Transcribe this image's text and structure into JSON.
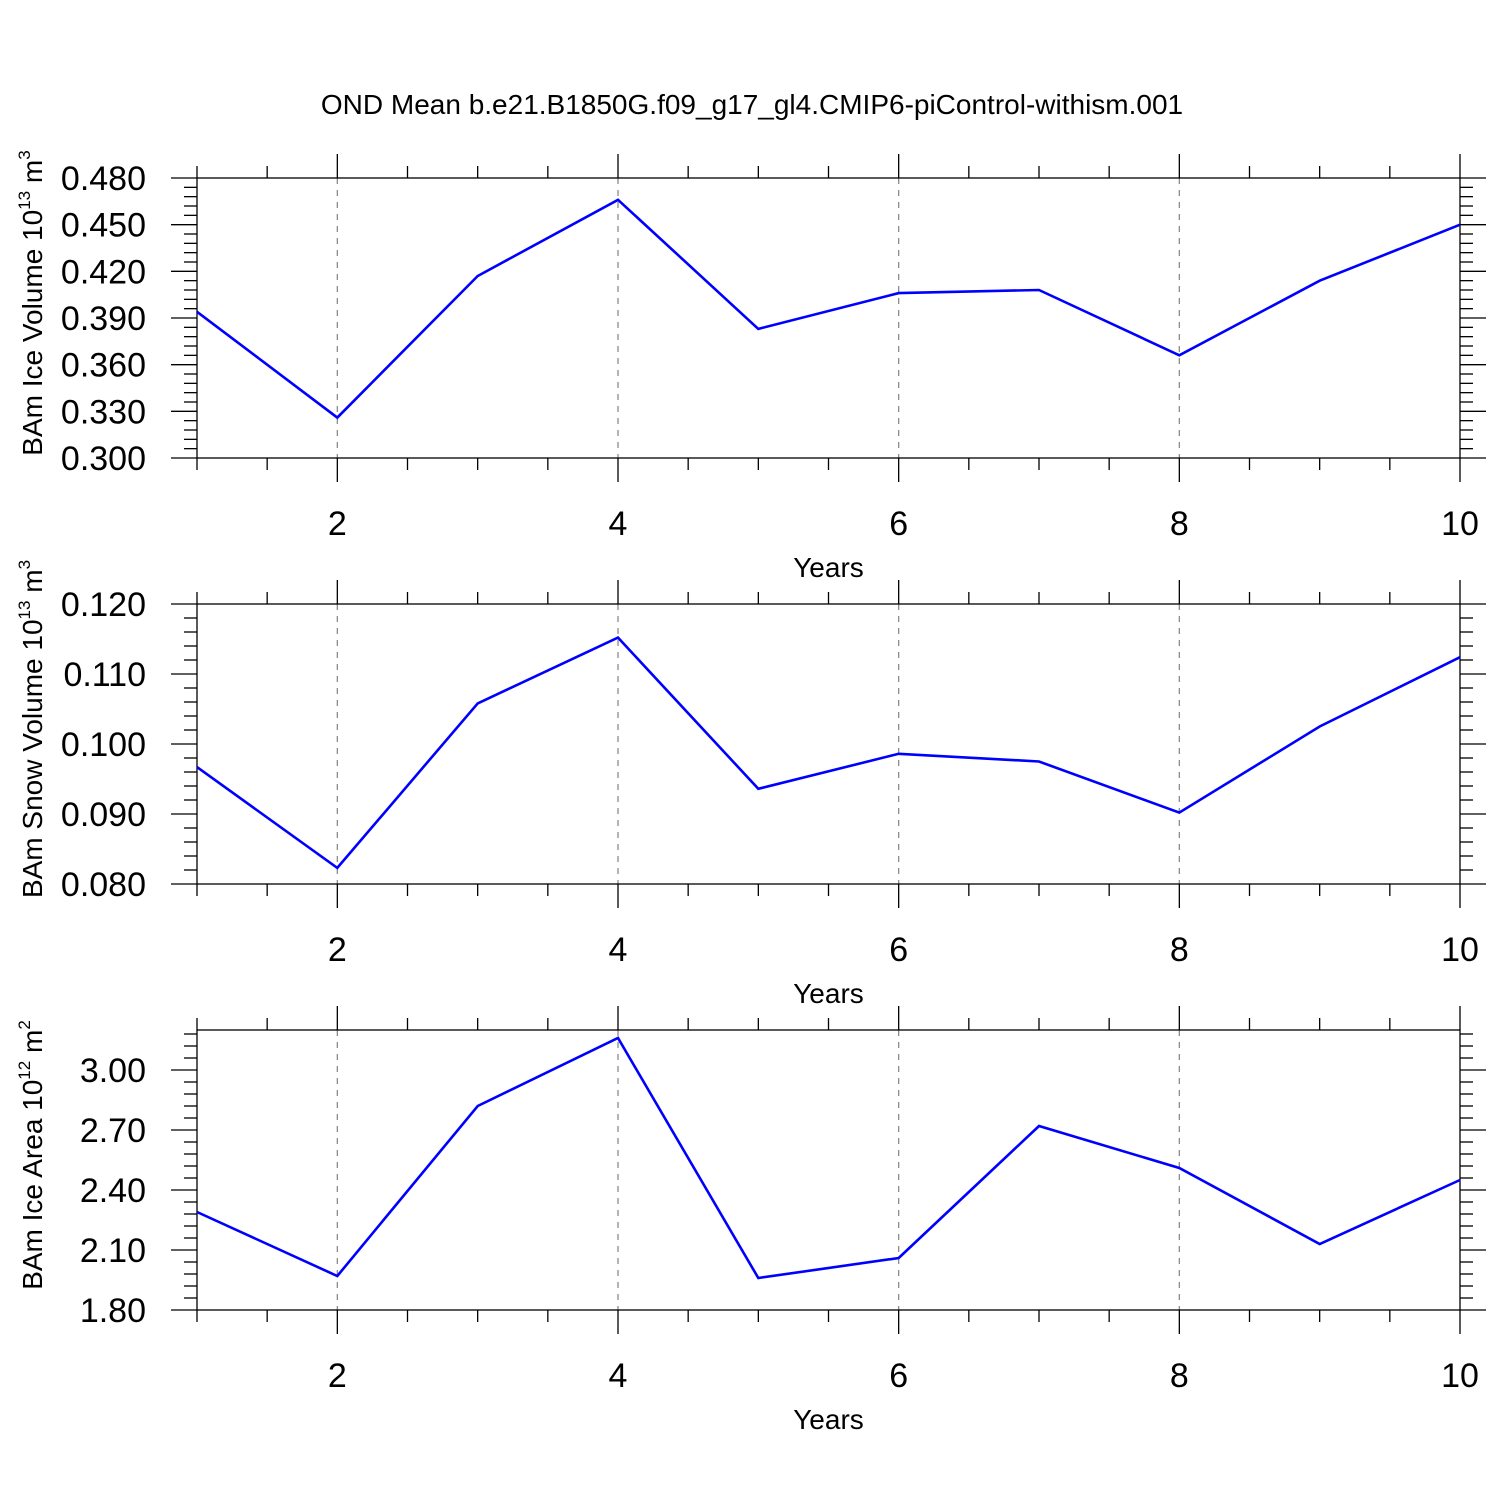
{
  "title": "OND Mean b.e21.B1850G.f09_g17_gl4.CMIP6-piControl-withism.001",
  "colors": {
    "line": "#0000ff",
    "grid": "#8c8c8c",
    "axis": "#000000"
  },
  "chart_data": [
    {
      "type": "line",
      "xlabel": "Years",
      "ylabel": {
        "main": "BAm Ice Volume 10",
        "exp": "13",
        "unit": " m",
        "unit_exp": "3"
      },
      "x": [
        1,
        2,
        3,
        4,
        5,
        6,
        7,
        8,
        9,
        10
      ],
      "values": [
        0.394,
        0.326,
        0.417,
        0.466,
        0.383,
        0.406,
        0.408,
        0.366,
        0.414,
        0.45
      ],
      "xlim": [
        1,
        10
      ],
      "ylim": [
        0.3,
        0.48
      ],
      "xticks": [
        "2",
        "4",
        "6",
        "8",
        "10"
      ],
      "xtick_values": [
        2,
        4,
        6,
        8,
        10
      ],
      "yticks": [
        "0.300",
        "0.330",
        "0.360",
        "0.390",
        "0.420",
        "0.450",
        "0.480"
      ],
      "ytick_values": [
        0.3,
        0.33,
        0.36,
        0.39,
        0.42,
        0.45,
        0.48
      ],
      "grid": "vertical-dashed"
    },
    {
      "type": "line",
      "xlabel": "Years",
      "ylabel": {
        "main": "BAm Snow Volume 10",
        "exp": "13",
        "unit": " m",
        "unit_exp": "3"
      },
      "x": [
        1,
        2,
        3,
        4,
        5,
        6,
        7,
        8,
        9,
        10
      ],
      "values": [
        0.0967,
        0.0823,
        0.1058,
        0.1152,
        0.0936,
        0.0986,
        0.0975,
        0.0902,
        0.1025,
        0.1124
      ],
      "xlim": [
        1,
        10
      ],
      "ylim": [
        0.08,
        0.12
      ],
      "xticks": [
        "2",
        "4",
        "6",
        "8",
        "10"
      ],
      "xtick_values": [
        2,
        4,
        6,
        8,
        10
      ],
      "yticks": [
        "0.080",
        "0.090",
        "0.100",
        "0.110",
        "0.120"
      ],
      "ytick_values": [
        0.08,
        0.09,
        0.1,
        0.11,
        0.12
      ],
      "grid": "vertical-dashed"
    },
    {
      "type": "line",
      "xlabel": "Years",
      "ylabel": {
        "main": "BAm Ice Area 10",
        "exp": "12",
        "unit": " m",
        "unit_exp": "2"
      },
      "x": [
        1,
        2,
        3,
        4,
        5,
        6,
        7,
        8,
        9,
        10
      ],
      "values": [
        2.29,
        1.97,
        2.82,
        3.16,
        1.96,
        2.06,
        2.72,
        2.51,
        2.13,
        2.45
      ],
      "xlim": [
        1,
        10
      ],
      "ylim": [
        1.8,
        3.2
      ],
      "xticks": [
        "2",
        "4",
        "6",
        "8",
        "10"
      ],
      "xtick_values": [
        2,
        4,
        6,
        8,
        10
      ],
      "yticks": [
        "1.80",
        "2.10",
        "2.40",
        "2.70",
        "3.00"
      ],
      "ytick_values": [
        1.8,
        2.1,
        2.4,
        2.7,
        3.0
      ],
      "grid": "vertical-dashed"
    }
  ]
}
